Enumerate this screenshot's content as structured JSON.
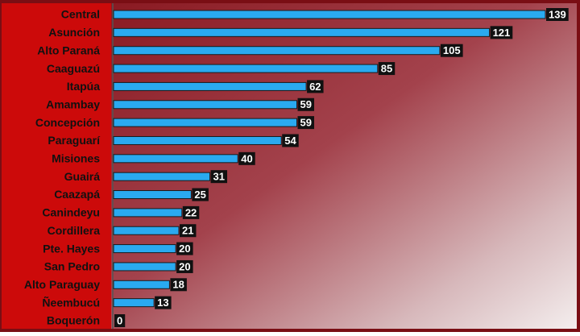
{
  "chart_data": {
    "type": "bar",
    "orientation": "horizontal",
    "categories": [
      "Central",
      "Asunción",
      "Alto Paraná",
      "Caaguazú",
      "Itapúa",
      "Amambay",
      "Concepción",
      "Paraguarí",
      "Misiones",
      "Guairá",
      "Caazapá",
      "Canindeyu",
      "Cordillera",
      "Pte. Hayes",
      "San Pedro",
      "Alto Paraguay",
      "Ñeembucú",
      "Boquerón"
    ],
    "values": [
      139,
      121,
      105,
      85,
      62,
      59,
      59,
      54,
      40,
      31,
      25,
      22,
      21,
      20,
      20,
      18,
      13,
      0
    ],
    "color": "#2aaaf0"
  }
}
